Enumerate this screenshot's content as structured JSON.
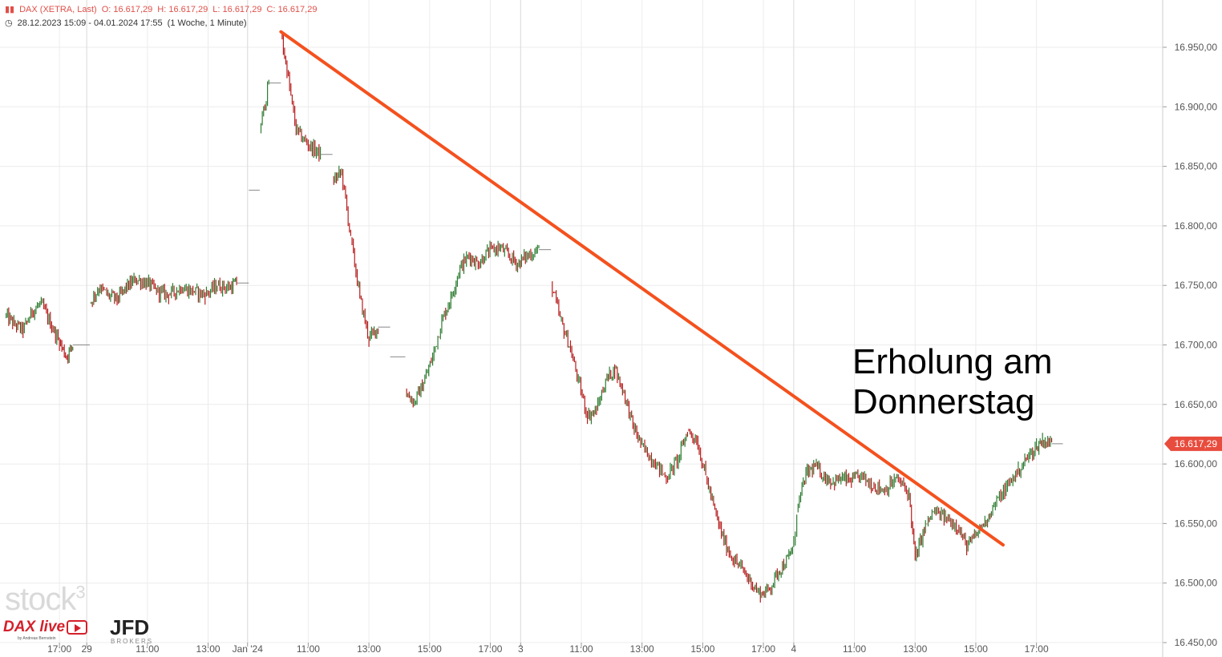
{
  "header": {
    "instrument": "DAX (XETRA, Last)",
    "ohlc": [
      "O: 16.617,29",
      "H: 16.617,29",
      "L: 16.617,29",
      "C: 16.617,29"
    ],
    "range": "28.12.2023 15:09 - 04.01.2024 17:55",
    "interval": "(1 Woche, 1 Minute)"
  },
  "annotation": [
    "Erholung am",
    "Donnerstag"
  ],
  "logos": {
    "stock": "stock",
    "stock_sup": "3",
    "dax": "DAX live",
    "dax_sub": "by Andreas Bernstein",
    "jfd": "JFD",
    "brokers": "BROKERS"
  },
  "colors": {
    "up": "#2e7d32",
    "down": "#b71c1c",
    "trend": "#f4511e",
    "price_tag": "#e84c3d",
    "grid": "#ececec"
  },
  "chart_data": {
    "type": "line",
    "title": "",
    "ylim": [
      16450,
      16970
    ],
    "y_ticks": [
      "16.450,00",
      "16.500,00",
      "16.550,00",
      "16.600,00",
      "16.650,00",
      "16.700,00",
      "16.750,00",
      "16.800,00",
      "16.850,00",
      "16.900,00",
      "16.950,00"
    ],
    "x_ticks": [
      {
        "label": "17:00",
        "t": 0.9
      },
      {
        "label": "29",
        "t": 1.35
      },
      {
        "label": "11:00",
        "t": 2.35
      },
      {
        "label": "13:00",
        "t": 3.35
      },
      {
        "label": "Jan '24",
        "t": 4.0
      },
      {
        "label": "11:00",
        "t": 5.0
      },
      {
        "label": "13:00",
        "t": 6.0
      },
      {
        "label": "15:00",
        "t": 7.0
      },
      {
        "label": "17:00",
        "t": 8.0
      },
      {
        "label": "3",
        "t": 8.5
      },
      {
        "label": "11:00",
        "t": 9.5
      },
      {
        "label": "13:00",
        "t": 10.5
      },
      {
        "label": "15:00",
        "t": 11.5
      },
      {
        "label": "17:00",
        "t": 12.5
      },
      {
        "label": "4",
        "t": 13.0
      },
      {
        "label": "11:00",
        "t": 14.0
      },
      {
        "label": "13:00",
        "t": 15.0
      },
      {
        "label": "15:00",
        "t": 16.0
      },
      {
        "label": "17:00",
        "t": 17.0
      }
    ],
    "series": [
      {
        "points": [
          [
            0,
            16725
          ],
          [
            0.15,
            16718
          ],
          [
            0.3,
            16712
          ],
          [
            0.45,
            16728
          ],
          [
            0.6,
            16735
          ],
          [
            0.75,
            16718
          ],
          [
            0.9,
            16702
          ],
          [
            1.02,
            16690
          ],
          [
            1.12,
            16700
          ],
          [
            1.4,
            16735
          ],
          [
            1.55,
            16748
          ],
          [
            1.7,
            16742
          ],
          [
            1.85,
            16738
          ],
          [
            2.0,
            16748
          ],
          [
            2.15,
            16755
          ],
          [
            2.35,
            16752
          ],
          [
            2.5,
            16745
          ],
          [
            2.7,
            16742
          ],
          [
            2.9,
            16748
          ],
          [
            3.1,
            16745
          ],
          [
            3.3,
            16742
          ],
          [
            3.5,
            16750
          ],
          [
            3.7,
            16748
          ],
          [
            3.82,
            16752
          ],
          [
            4.02,
            16830
          ],
          [
            4.2,
            16880
          ],
          [
            4.35,
            16920
          ],
          [
            4.55,
            16962
          ],
          [
            4.65,
            16930
          ],
          [
            4.8,
            16880
          ],
          [
            5.0,
            16868
          ],
          [
            5.2,
            16860
          ],
          [
            5.4,
            16838
          ],
          [
            5.55,
            16845
          ],
          [
            5.7,
            16790
          ],
          [
            5.85,
            16740
          ],
          [
            6.0,
            16705
          ],
          [
            6.15,
            16715
          ],
          [
            6.35,
            16690
          ],
          [
            6.6,
            16660
          ],
          [
            6.75,
            16652
          ],
          [
            6.9,
            16668
          ],
          [
            7.05,
            16690
          ],
          [
            7.2,
            16720
          ],
          [
            7.35,
            16740
          ],
          [
            7.5,
            16765
          ],
          [
            7.65,
            16775
          ],
          [
            7.8,
            16768
          ],
          [
            7.95,
            16778
          ],
          [
            8.15,
            16782
          ],
          [
            8.3,
            16775
          ],
          [
            8.45,
            16768
          ],
          [
            8.6,
            16775
          ],
          [
            8.8,
            16780
          ],
          [
            9.0,
            16752
          ],
          [
            9.15,
            16722
          ],
          [
            9.3,
            16700
          ],
          [
            9.45,
            16670
          ],
          [
            9.6,
            16640
          ],
          [
            9.75,
            16645
          ],
          [
            9.9,
            16670
          ],
          [
            10.05,
            16680
          ],
          [
            10.2,
            16660
          ],
          [
            10.35,
            16632
          ],
          [
            10.5,
            16615
          ],
          [
            10.7,
            16602
          ],
          [
            10.9,
            16588
          ],
          [
            11.1,
            16605
          ],
          [
            11.25,
            16628
          ],
          [
            11.4,
            16620
          ],
          [
            11.55,
            16590
          ],
          [
            11.7,
            16560
          ],
          [
            11.85,
            16535
          ],
          [
            12.0,
            16520
          ],
          [
            12.15,
            16512
          ],
          [
            12.3,
            16500
          ],
          [
            12.45,
            16490
          ],
          [
            12.6,
            16495
          ],
          [
            12.75,
            16510
          ],
          [
            12.9,
            16520
          ],
          [
            13.0,
            16532
          ],
          [
            13.05,
            16560
          ],
          [
            13.2,
            16592
          ],
          [
            13.35,
            16598
          ],
          [
            13.5,
            16590
          ],
          [
            13.65,
            16585
          ],
          [
            13.8,
            16588
          ],
          [
            13.95,
            16585
          ],
          [
            14.1,
            16590
          ],
          [
            14.3,
            16582
          ],
          [
            14.5,
            16578
          ],
          [
            14.7,
            16588
          ],
          [
            14.9,
            16575
          ],
          [
            15.0,
            16520
          ],
          [
            15.15,
            16545
          ],
          [
            15.3,
            16560
          ],
          [
            15.5,
            16555
          ],
          [
            15.7,
            16548
          ],
          [
            15.85,
            16530
          ],
          [
            16.0,
            16540
          ],
          [
            16.15,
            16552
          ],
          [
            16.3,
            16565
          ],
          [
            16.5,
            16580
          ],
          [
            16.7,
            16595
          ],
          [
            16.85,
            16605
          ],
          [
            17.0,
            16615
          ],
          [
            17.1,
            16620
          ],
          [
            17.25,
            16617
          ]
        ]
      }
    ],
    "trendline": [
      [
        4.55,
        16963
      ],
      [
        16.45,
        16532
      ]
    ],
    "last_price": "16.617,29"
  }
}
